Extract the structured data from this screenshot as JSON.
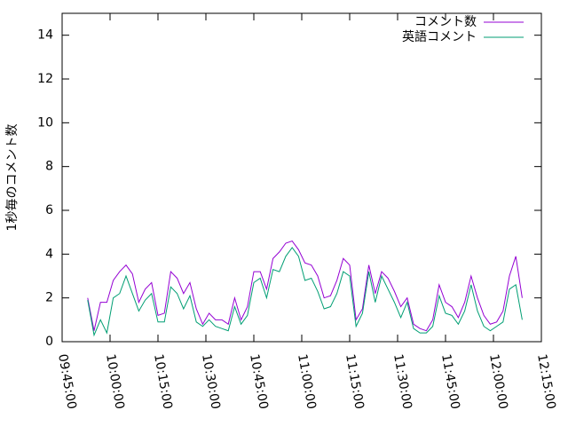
{
  "chart_data": {
    "type": "line",
    "ylabel": "1秒毎のコメント数",
    "x": [
      "09:53:00",
      "09:55:00",
      "09:57:00",
      "09:59:00",
      "10:01:00",
      "10:03:00",
      "10:05:00",
      "10:07:00",
      "10:09:00",
      "10:11:00",
      "10:13:00",
      "10:15:00",
      "10:17:00",
      "10:19:00",
      "10:21:00",
      "10:23:00",
      "10:25:00",
      "10:27:00",
      "10:29:00",
      "10:31:00",
      "10:33:00",
      "10:35:00",
      "10:37:00",
      "10:39:00",
      "10:41:00",
      "10:43:00",
      "10:45:00",
      "10:47:00",
      "10:49:00",
      "10:51:00",
      "10:53:00",
      "10:55:00",
      "10:57:00",
      "10:59:00",
      "11:01:00",
      "11:03:00",
      "11:05:00",
      "11:07:00",
      "11:09:00",
      "11:11:00",
      "11:13:00",
      "11:15:00",
      "11:17:00",
      "11:19:00",
      "11:21:00",
      "11:23:00",
      "11:25:00",
      "11:27:00",
      "11:29:00",
      "11:31:00",
      "11:33:00",
      "11:35:00",
      "11:37:00",
      "11:39:00",
      "11:41:00",
      "11:43:00",
      "11:45:00",
      "11:47:00",
      "11:49:00",
      "11:51:00",
      "11:53:00",
      "11:55:00",
      "11:57:00",
      "11:59:00",
      "12:01:00",
      "12:03:00",
      "12:05:00",
      "12:07:00",
      "12:09:00"
    ],
    "series": [
      {
        "name": "コメント数",
        "color": "#9400d3",
        "values": [
          2.0,
          0.5,
          1.8,
          1.8,
          2.8,
          3.2,
          3.5,
          3.1,
          1.8,
          2.4,
          2.7,
          1.2,
          1.3,
          3.2,
          2.9,
          2.2,
          2.7,
          1.5,
          0.8,
          1.3,
          1.0,
          1.0,
          0.8,
          2.0,
          1.0,
          1.6,
          3.2,
          3.2,
          2.4,
          3.8,
          4.1,
          4.5,
          4.6,
          4.2,
          3.6,
          3.5,
          3.0,
          2.0,
          2.1,
          2.8,
          3.8,
          3.5,
          1.0,
          1.5,
          3.5,
          2.2,
          3.2,
          2.9,
          2.3,
          1.6,
          2.0,
          0.8,
          0.6,
          0.5,
          1.0,
          2.6,
          1.8,
          1.6,
          1.1,
          1.8,
          3.0,
          2.0,
          1.2,
          0.8,
          0.9,
          1.4,
          3.0,
          3.9,
          2.0
        ]
      },
      {
        "name": "英語コメント",
        "color": "#009e73",
        "values": [
          1.9,
          0.3,
          1.0,
          0.4,
          2.0,
          2.2,
          3.0,
          2.2,
          1.4,
          1.9,
          2.2,
          0.9,
          0.9,
          2.5,
          2.2,
          1.5,
          2.1,
          0.9,
          0.7,
          1.0,
          0.7,
          0.6,
          0.5,
          1.6,
          0.8,
          1.2,
          2.7,
          2.9,
          2.0,
          3.3,
          3.2,
          3.9,
          4.3,
          3.9,
          2.8,
          2.9,
          2.3,
          1.5,
          1.6,
          2.2,
          3.2,
          3.0,
          0.7,
          1.3,
          3.2,
          1.8,
          3.0,
          2.4,
          1.8,
          1.1,
          1.8,
          0.6,
          0.4,
          0.4,
          0.7,
          2.1,
          1.3,
          1.2,
          0.8,
          1.4,
          2.6,
          1.4,
          0.7,
          0.5,
          0.7,
          0.9,
          2.4,
          2.6,
          1.0
        ]
      }
    ],
    "xlim": [
      "09:45:00",
      "12:15:00"
    ],
    "xticks": [
      "09:45:00",
      "10:00:00",
      "10:15:00",
      "10:30:00",
      "10:45:00",
      "11:00:00",
      "11:15:00",
      "11:30:00",
      "11:45:00",
      "12:00:00",
      "12:15:00"
    ],
    "ylim": [
      0,
      15
    ],
    "yticks": [
      0,
      2,
      4,
      6,
      8,
      10,
      12,
      14
    ],
    "legend": "top right"
  }
}
